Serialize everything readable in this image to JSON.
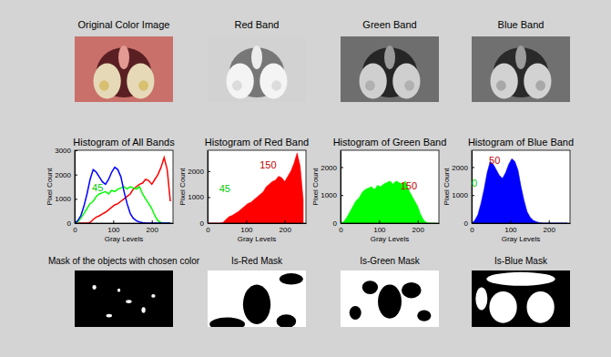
{
  "images": [
    {
      "title": "Original Color Image"
    },
    {
      "title": "Red Band"
    },
    {
      "title": "Green Band"
    },
    {
      "title": "Blue Band"
    }
  ],
  "chart_data": [
    {
      "type": "line",
      "title": "Histogram of All Bands",
      "x_label": "Gray Levels",
      "y_label": "Pixel Count",
      "x": [
        0,
        8,
        16,
        24,
        32,
        40,
        48,
        56,
        64,
        72,
        80,
        88,
        96,
        104,
        112,
        120,
        128,
        136,
        144,
        152,
        160,
        168,
        176,
        184,
        192,
        200,
        208,
        216,
        224,
        232,
        240,
        248
      ],
      "series": [
        {
          "color": "#ff0000",
          "values": [
            0,
            0,
            0,
            0,
            0,
            30,
            150,
            250,
            300,
            380,
            450,
            550,
            650,
            750,
            800,
            900,
            1000,
            1100,
            1200,
            1400,
            1500,
            1600,
            1650,
            1800,
            1750,
            1600,
            1800,
            2000,
            2300,
            2700,
            2200,
            900
          ]
        },
        {
          "color": "#00ff00",
          "values": [
            0,
            50,
            200,
            400,
            600,
            800,
            900,
            1100,
            1200,
            1250,
            1300,
            1200,
            1350,
            1300,
            1400,
            1450,
            1500,
            1400,
            1500,
            1450,
            1400,
            1500,
            1200,
            1000,
            800,
            600,
            300,
            100,
            20,
            0,
            0,
            0
          ]
        },
        {
          "color": "#0000ff",
          "values": [
            0,
            100,
            300,
            700,
            1200,
            1800,
            2200,
            2100,
            1900,
            1700,
            1600,
            1800,
            2100,
            2300,
            2200,
            1900,
            1300,
            800,
            400,
            200,
            100,
            50,
            20,
            0,
            0,
            0,
            0,
            0,
            0,
            0,
            0,
            0
          ]
        }
      ],
      "xlim": [
        0,
        255
      ],
      "xticks": [
        0,
        100,
        200
      ],
      "ylim": [
        0,
        3000
      ],
      "yticks": [
        0,
        1000,
        2000,
        3000
      ],
      "annotations": [
        {
          "text": "45",
          "x": 45,
          "y": 1300,
          "color": "#00cc00"
        }
      ]
    },
    {
      "type": "area",
      "title": "Histogram of Red Band",
      "x_label": "Gray Levels",
      "y_label": "Pixel Count",
      "x": [
        0,
        8,
        16,
        24,
        32,
        40,
        48,
        56,
        64,
        72,
        80,
        88,
        96,
        104,
        112,
        120,
        128,
        136,
        144,
        152,
        160,
        168,
        176,
        184,
        192,
        200,
        208,
        216,
        224,
        232,
        240,
        248
      ],
      "series": [
        {
          "color": "#ff0000",
          "values": [
            0,
            0,
            0,
            0,
            0,
            30,
            150,
            250,
            300,
            380,
            450,
            550,
            650,
            750,
            800,
            900,
            1000,
            1100,
            1200,
            1400,
            1500,
            1600,
            1650,
            1800,
            1750,
            1600,
            1800,
            2000,
            2300,
            2700,
            2200,
            900
          ]
        }
      ],
      "xlim": [
        0,
        255
      ],
      "xticks": [
        0,
        100,
        200
      ],
      "ylim": [
        0,
        2800
      ],
      "yticks": [
        0,
        1000,
        2000
      ],
      "annotations": [
        {
          "text": "45",
          "x": 30,
          "y": 1200,
          "color": "#00cc00"
        },
        {
          "text": "150",
          "x": 135,
          "y": 2100,
          "color": "#c00000"
        }
      ]
    },
    {
      "type": "area",
      "title": "Histogram of Green Band",
      "x_label": "Gray Levels",
      "y_label": "Pixel Count",
      "x": [
        0,
        8,
        16,
        24,
        32,
        40,
        48,
        56,
        64,
        72,
        80,
        88,
        96,
        104,
        112,
        120,
        128,
        136,
        144,
        152,
        160,
        168,
        176,
        184,
        192,
        200,
        208,
        216,
        224,
        232,
        240,
        248
      ],
      "series": [
        {
          "color": "#00ff00",
          "values": [
            0,
            50,
            200,
            400,
            600,
            800,
            900,
            1100,
            1200,
            1250,
            1300,
            1200,
            1350,
            1300,
            1400,
            1450,
            1500,
            1400,
            1500,
            1450,
            1400,
            1500,
            1200,
            1000,
            800,
            600,
            300,
            100,
            20,
            0,
            0,
            0
          ]
        }
      ],
      "xlim": [
        0,
        255
      ],
      "xticks": [
        0,
        100,
        200
      ],
      "ylim": [
        0,
        2600
      ],
      "yticks": [
        0,
        1000,
        2000
      ],
      "annotations": [
        {
          "text": "150",
          "x": 155,
          "y": 1200,
          "color": "#c00000"
        }
      ]
    },
    {
      "type": "area",
      "title": "Histogram of Blue Band",
      "x_label": "Gray Levels",
      "y_label": "Pixel Count",
      "x": [
        0,
        8,
        16,
        24,
        32,
        40,
        48,
        56,
        64,
        72,
        80,
        88,
        96,
        104,
        112,
        120,
        128,
        136,
        144,
        152,
        160,
        168,
        176,
        184,
        192,
        200,
        208,
        216,
        224,
        232,
        240,
        248
      ],
      "series": [
        {
          "color": "#0000ff",
          "values": [
            0,
            100,
            300,
            700,
            1200,
            1800,
            2200,
            2100,
            1900,
            1700,
            1600,
            1800,
            2100,
            2300,
            2200,
            1900,
            1300,
            800,
            400,
            200,
            100,
            50,
            20,
            0,
            0,
            0,
            0,
            0,
            0,
            0,
            0,
            0
          ]
        }
      ],
      "xlim": [
        0,
        255
      ],
      "xticks": [
        0,
        100,
        200
      ],
      "ylim": [
        0,
        2600
      ],
      "yticks": [
        0,
        1000,
        2000
      ],
      "annotations": [
        {
          "text": "0",
          "x": 0,
          "y": 1300,
          "color": "#00cc00"
        },
        {
          "text": "50",
          "x": 45,
          "y": 2100,
          "color": "#c00000"
        }
      ]
    }
  ],
  "masks": [
    {
      "title": "Mask of the objects with chosen color"
    },
    {
      "title": "Is-Red Mask"
    },
    {
      "title": "Is-Green Mask"
    },
    {
      "title": "Is-Blue Mask"
    }
  ]
}
